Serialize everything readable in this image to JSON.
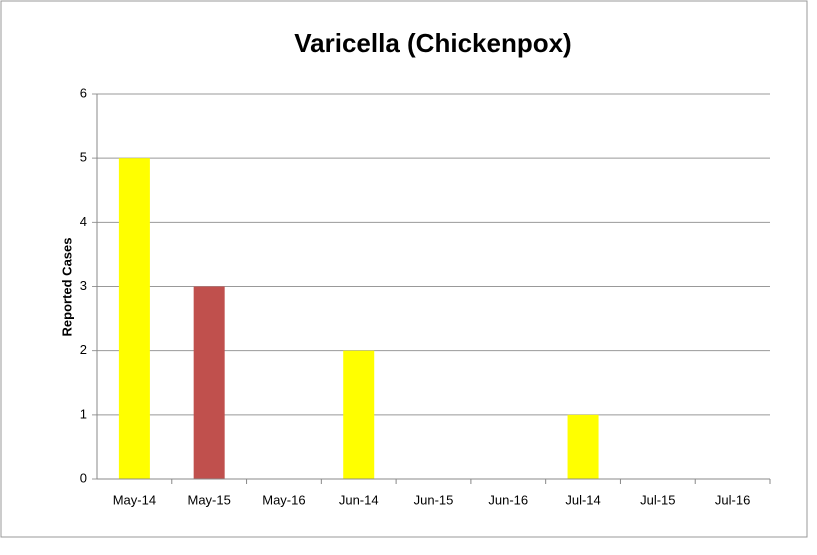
{
  "chart_data": {
    "type": "bar",
    "title": "Varicella (Chickenpox)",
    "y_label": "Reported Cases",
    "categories": [
      "May-14",
      "May-15",
      "May-16",
      "Jun-14",
      "Jun-15",
      "Jun-16",
      "Jul-14",
      "Jul-15",
      "Jul-16"
    ],
    "values": [
      5,
      3,
      0,
      2,
      0,
      0,
      1,
      0,
      0
    ],
    "colors": [
      "#ffff00",
      "#c0504d",
      "#ffff00",
      "#ffff00",
      "#c0504d",
      "#ffff00",
      "#ffff00",
      "#c0504d",
      "#ffff00"
    ],
    "ylim": [
      0,
      6
    ],
    "yticks": [
      0,
      1,
      2,
      3,
      4,
      5,
      6
    ],
    "grid": true
  }
}
